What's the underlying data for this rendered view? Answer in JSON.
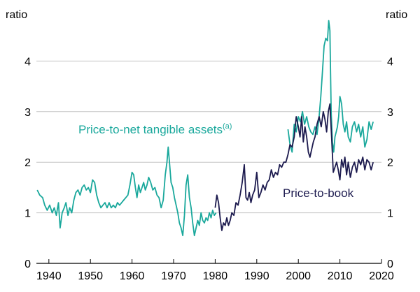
{
  "chart_data": {
    "type": "line",
    "title": "",
    "xlabel": "",
    "ylabel": "ratio",
    "ylabel_right": "ratio",
    "xlim": [
      1937,
      2020
    ],
    "ylim": [
      0,
      5
    ],
    "x_ticks": [
      1940,
      1950,
      1960,
      1970,
      1980,
      1990,
      2000,
      2010,
      2020
    ],
    "y_ticks": [
      0,
      1,
      2,
      3,
      4
    ],
    "grid": "horizontal",
    "annotations": {
      "tangible_label": "Price-to-net tangible assets",
      "tangible_sup": "(a)",
      "book_label": "Price-to-book"
    },
    "series": [
      {
        "name": "Price-to-net tangible assets",
        "color": "#1aa89c",
        "x": [
          1937.2,
          1937.8,
          1938.5,
          1939.0,
          1939.6,
          1940.2,
          1940.8,
          1941.3,
          1941.8,
          1942.3,
          1942.7,
          1943.2,
          1943.7,
          1944.1,
          1944.6,
          1945.0,
          1945.5,
          1946.0,
          1946.5,
          1947.0,
          1947.5,
          1948.0,
          1948.5,
          1949.0,
          1949.5,
          1950.0,
          1950.5,
          1951.0,
          1951.5,
          1952.0,
          1952.5,
          1953.0,
          1953.5,
          1954.0,
          1954.5,
          1955.0,
          1955.5,
          1956.0,
          1956.5,
          1957.0,
          1957.5,
          1958.0,
          1958.5,
          1959.0,
          1959.5,
          1960.0,
          1960.4,
          1960.8,
          1961.2,
          1961.6,
          1962.0,
          1962.4,
          1962.8,
          1963.2,
          1963.6,
          1964.0,
          1964.5,
          1965.0,
          1965.5,
          1966.0,
          1966.5,
          1967.0,
          1967.5,
          1968.0,
          1968.4,
          1968.7,
          1969.0,
          1969.4,
          1969.8,
          1970.2,
          1970.6,
          1971.0,
          1971.4,
          1971.8,
          1972.2,
          1972.6,
          1973.0,
          1973.4,
          1973.8,
          1974.2,
          1974.6,
          1975.0,
          1975.4,
          1975.8,
          1976.2,
          1976.6,
          1977.0,
          1977.4,
          1977.8,
          1978.2,
          1978.6,
          1979.0,
          1979.4,
          1979.8,
          1980.2,
          null,
          1997.5,
          1998.0,
          1998.5,
          1999.0,
          1999.5,
          2000.0,
          2000.5,
          2001.0,
          2001.5,
          2002.0,
          2002.5,
          2003.0,
          2003.5,
          2004.0,
          2004.5,
          2005.0,
          2005.4,
          2005.8,
          2006.2,
          2006.6,
          2007.0,
          2007.3,
          2007.6,
          2007.9,
          2008.2,
          2008.5,
          2008.8,
          2009.1,
          2009.4,
          2009.7,
          2010.0,
          2010.4,
          2010.8,
          2011.2,
          2011.6,
          2012.0,
          2012.5,
          2013.0,
          2013.5,
          2014.0,
          2014.5,
          2015.0,
          2015.5,
          2016.0,
          2016.5,
          2017.0,
          2017.5,
          2018.0
        ],
        "values": [
          1.45,
          1.35,
          1.3,
          1.15,
          1.05,
          1.15,
          1.0,
          1.1,
          0.95,
          1.2,
          0.7,
          1.0,
          1.1,
          1.2,
          0.95,
          1.1,
          1.0,
          1.25,
          1.4,
          1.45,
          1.35,
          1.5,
          1.55,
          1.45,
          1.5,
          1.4,
          1.65,
          1.6,
          1.35,
          1.2,
          1.1,
          1.15,
          1.2,
          1.1,
          1.2,
          1.1,
          1.15,
          1.1,
          1.2,
          1.15,
          1.2,
          1.25,
          1.3,
          1.35,
          1.55,
          1.8,
          1.75,
          1.5,
          1.3,
          1.55,
          1.4,
          1.5,
          1.6,
          1.45,
          1.55,
          1.7,
          1.6,
          1.45,
          1.5,
          1.35,
          1.3,
          1.1,
          1.25,
          1.75,
          2.0,
          2.3,
          2.0,
          1.6,
          1.5,
          1.3,
          1.15,
          1.0,
          0.8,
          0.7,
          0.55,
          0.95,
          1.55,
          1.75,
          1.3,
          1.1,
          0.8,
          0.55,
          0.7,
          0.85,
          0.75,
          1.0,
          0.85,
          0.8,
          0.9,
          0.85,
          1.0,
          0.9,
          1.05,
          0.95,
          1.0,
          null,
          2.65,
          2.35,
          2.2,
          2.75,
          2.6,
          2.9,
          2.8,
          3.0,
          2.75,
          2.9,
          2.7,
          2.6,
          2.55,
          2.7,
          2.55,
          2.9,
          3.3,
          3.8,
          4.3,
          4.45,
          4.4,
          4.8,
          4.6,
          3.0,
          2.4,
          2.2,
          2.5,
          2.6,
          2.7,
          2.9,
          3.3,
          3.15,
          2.75,
          2.6,
          2.8,
          2.5,
          2.4,
          2.7,
          2.8,
          2.6,
          2.75,
          2.5,
          2.7,
          2.3,
          2.45,
          2.8,
          2.65,
          2.8
        ]
      },
      {
        "name": "Price-to-book",
        "color": "#1c1a4e",
        "x": [
          1980.0,
          1980.4,
          1980.8,
          1981.2,
          1981.6,
          1982.0,
          1982.4,
          1982.8,
          1983.2,
          1983.6,
          1984.0,
          1984.5,
          1985.0,
          1985.5,
          1986.0,
          1986.5,
          1987.0,
          1987.4,
          1987.8,
          1988.2,
          1988.6,
          1989.0,
          1989.5,
          1990.0,
          1990.5,
          1991.0,
          1991.5,
          1992.0,
          1992.5,
          1993.0,
          1993.5,
          1994.0,
          1994.5,
          1995.0,
          1995.5,
          1996.0,
          1996.5,
          1997.0,
          1997.5,
          1998.0,
          1998.5,
          1999.0,
          1999.5,
          2000.0,
          2000.4,
          2000.8,
          2001.2,
          2001.6,
          2002.0,
          2002.4,
          2002.8,
          2003.2,
          2003.6,
          2004.0,
          2004.5,
          2005.0,
          2005.5,
          2006.0,
          2006.4,
          2006.8,
          2007.2,
          2007.6,
          2008.0,
          2008.4,
          2008.8,
          2009.2,
          2009.6,
          2010.0,
          2010.4,
          2010.8,
          2011.2,
          2011.6,
          2012.0,
          2012.5,
          2013.0,
          2013.5,
          2014.0,
          2014.5,
          2015.0,
          2015.5,
          2016.0,
          2016.5,
          2017.0,
          2017.5,
          2018.0
        ],
        "values": [
          1.1,
          1.35,
          1.2,
          0.9,
          0.65,
          0.8,
          0.75,
          0.9,
          0.75,
          0.85,
          1.0,
          0.95,
          1.2,
          1.15,
          1.35,
          1.6,
          1.95,
          1.3,
          1.25,
          1.4,
          1.2,
          1.35,
          1.45,
          1.8,
          1.3,
          1.4,
          1.55,
          1.45,
          1.6,
          1.65,
          1.85,
          1.7,
          1.8,
          1.75,
          1.95,
          1.9,
          2.0,
          2.0,
          2.15,
          2.35,
          2.3,
          2.5,
          2.9,
          2.7,
          2.5,
          2.9,
          2.4,
          2.7,
          2.5,
          2.2,
          2.1,
          2.25,
          2.4,
          2.5,
          2.75,
          2.9,
          2.7,
          3.0,
          2.85,
          2.6,
          3.0,
          3.15,
          2.5,
          1.8,
          1.9,
          2.0,
          1.85,
          1.65,
          2.05,
          1.9,
          2.1,
          1.75,
          2.0,
          1.7,
          1.9,
          2.0,
          1.8,
          2.05,
          1.95,
          2.1,
          1.85,
          2.05,
          2.0,
          1.85,
          2.0
        ]
      }
    ]
  }
}
